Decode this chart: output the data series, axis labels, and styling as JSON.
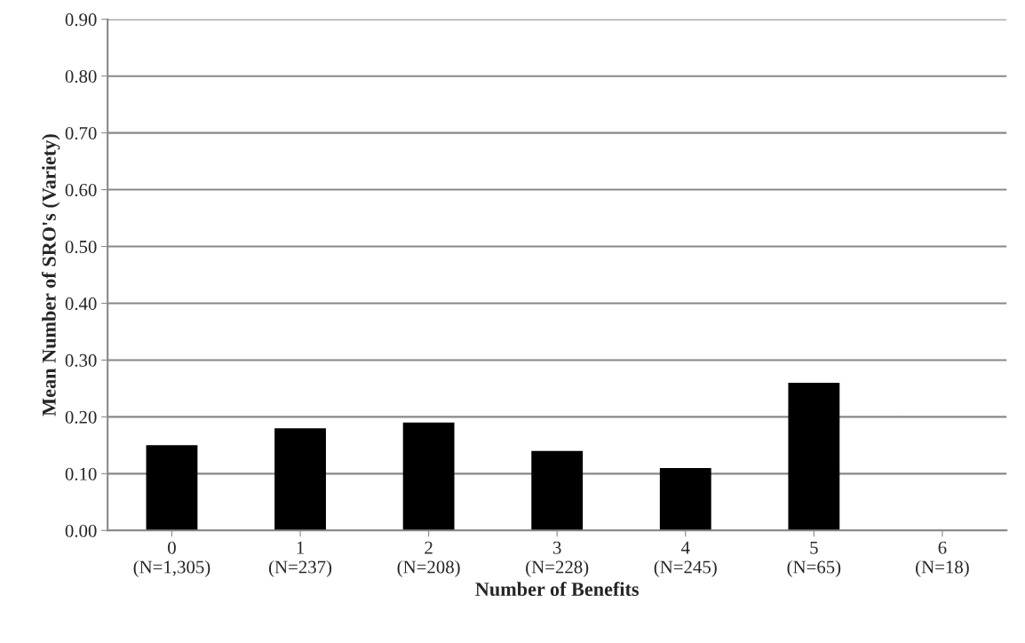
{
  "chart_data": {
    "type": "bar",
    "xlabel": "Number of Benefits",
    "ylabel": "Mean Number of SRO's (Variety)",
    "categories": [
      "0\n(N=1,305)",
      "1\n(N=237)",
      "2\n(N=208)",
      "3\n(N=228)",
      "4\n(N=245)",
      "5\n(N=65)",
      "6\n(N=18)"
    ],
    "values": [
      0.15,
      0.18,
      0.19,
      0.14,
      0.11,
      0.26,
      0
    ],
    "color": "#000000",
    "ylim": [
      0,
      0.9
    ],
    "yticks": [
      {
        "value": 0,
        "label": "0.00"
      },
      {
        "value": 0.1,
        "label": "0.10"
      },
      {
        "value": 0.2,
        "label": "0.20"
      },
      {
        "value": 0.3,
        "label": "0.30"
      },
      {
        "value": 0.4,
        "label": "0.40"
      },
      {
        "value": 0.5,
        "label": "0.50"
      },
      {
        "value": 0.6,
        "label": "0.60"
      },
      {
        "value": 0.7,
        "label": "0.70"
      },
      {
        "value": 0.8,
        "label": "0.80"
      },
      {
        "value": 0.9,
        "label": "0.90"
      }
    ],
    "grid": "y"
  }
}
